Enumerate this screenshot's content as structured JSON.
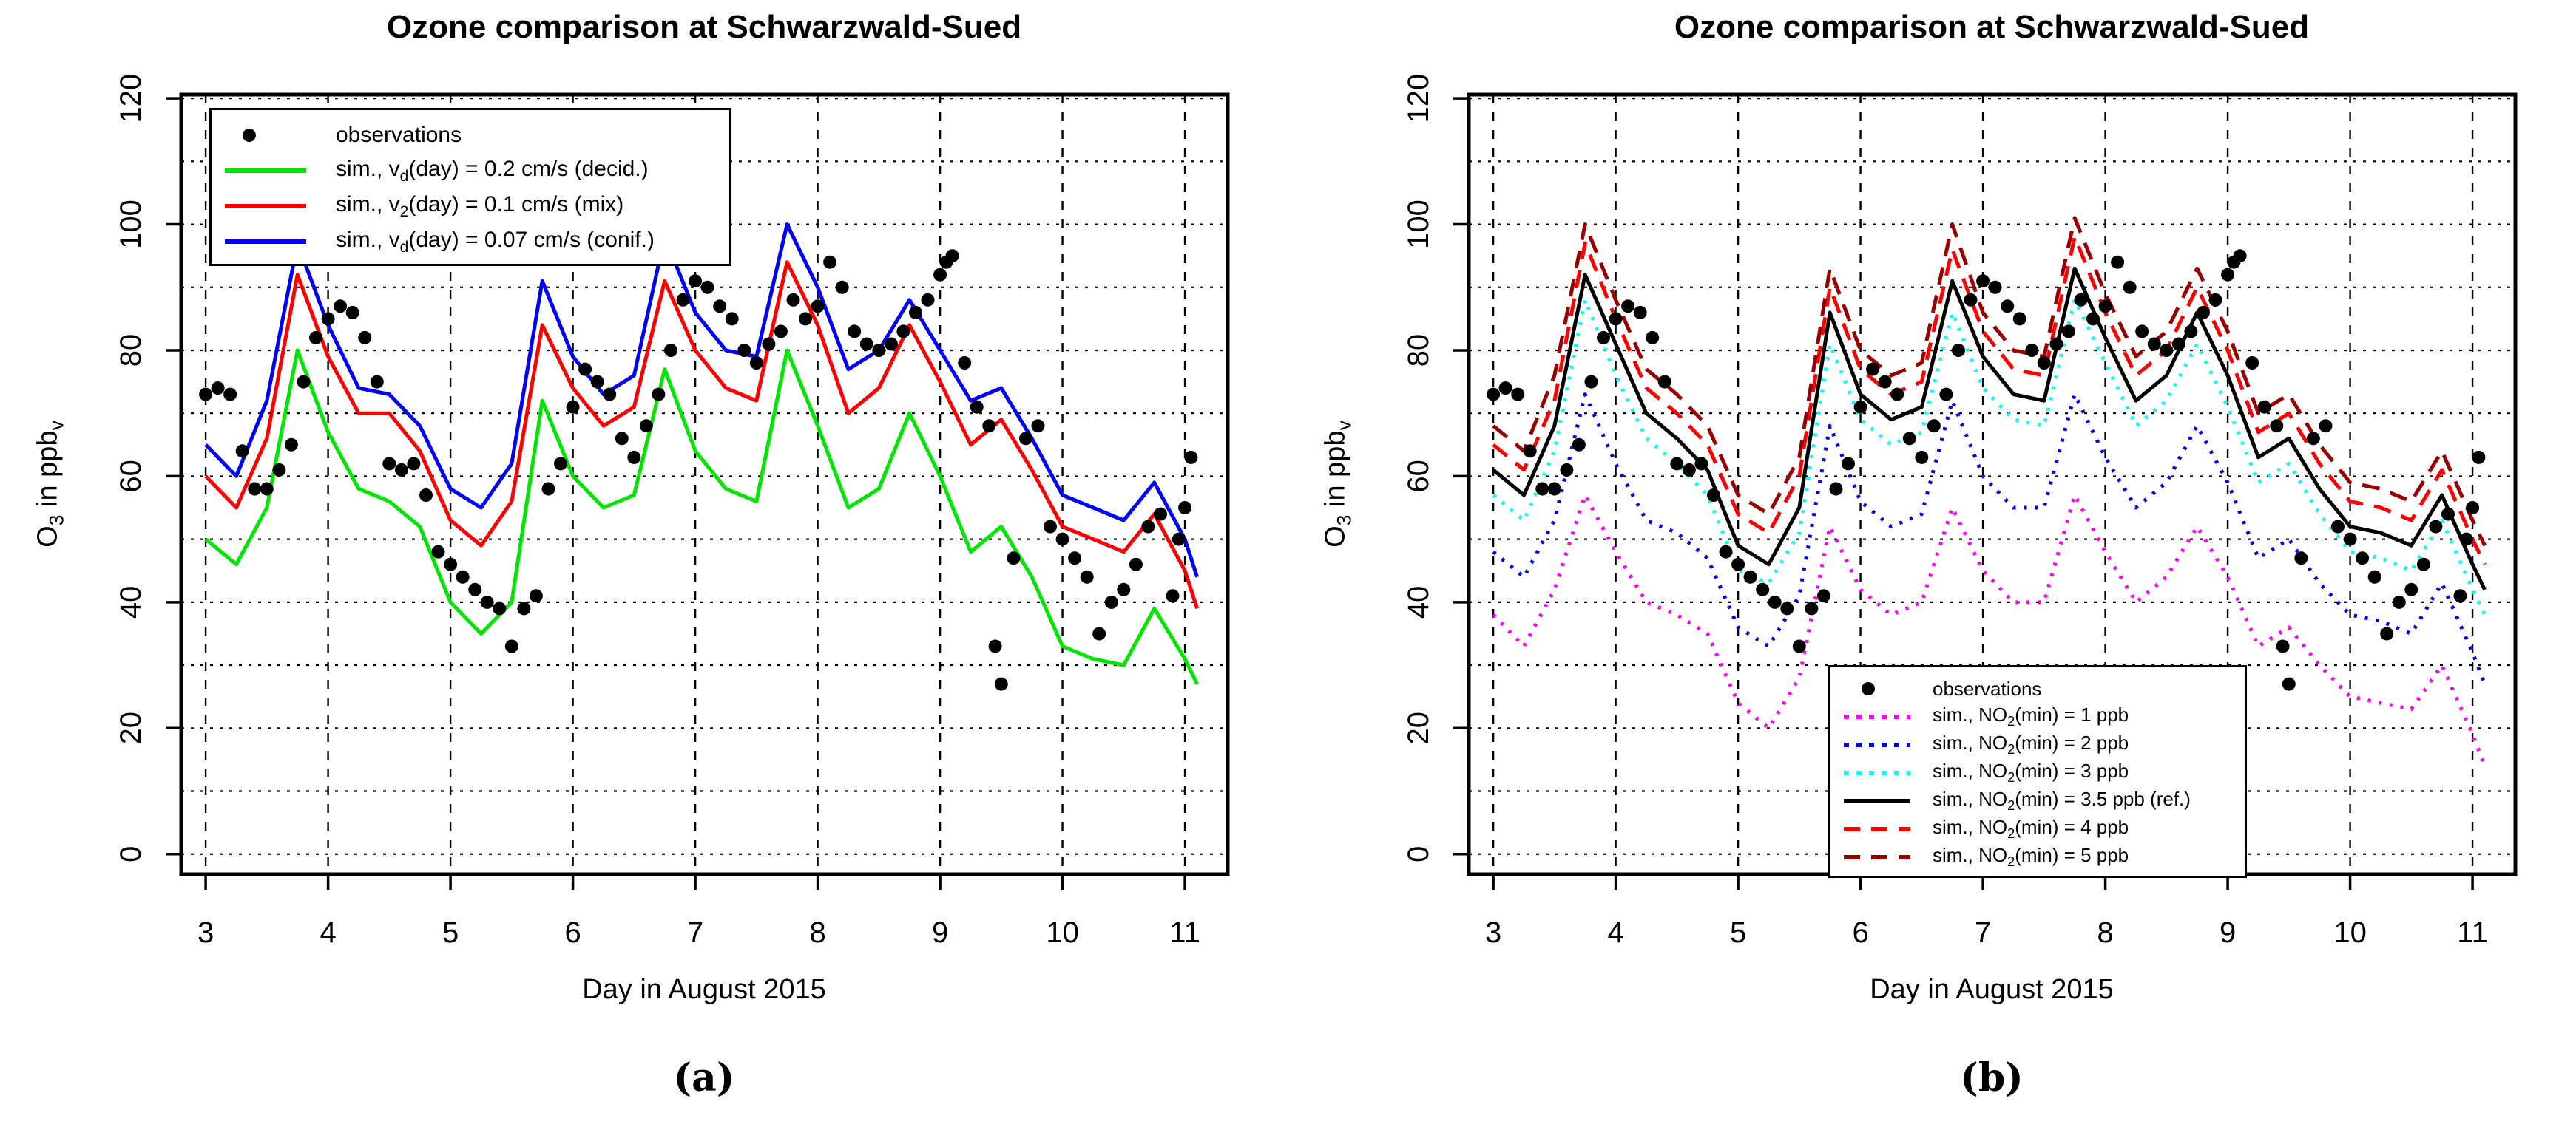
{
  "figure": {
    "captions": [
      "(a)",
      "(b)"
    ],
    "background": "#ffffff",
    "axis_color": "#000000"
  },
  "chart_data": [
    {
      "type": "line",
      "panel": "a",
      "title": "Ozone comparison at Schwarzwald-Sued",
      "xlabel": "Day in August 2015",
      "ylabel_parts": [
        {
          "t": "O"
        },
        {
          "sub": "3"
        },
        {
          "t": " in ppb"
        },
        {
          "sub": "v"
        }
      ],
      "xlim": [
        2.8,
        11.35
      ],
      "ylim": [
        -3.2,
        120.6
      ],
      "x_ticks": [
        3,
        4,
        5,
        6,
        7,
        8,
        9,
        10,
        11
      ],
      "y_ticks": [
        0,
        20,
        40,
        60,
        80,
        100,
        120
      ],
      "grid": {
        "x_step": 1,
        "y_step": 10,
        "on": true
      },
      "legend_position": "top-left",
      "x_sim": [
        3,
        3.25,
        3.5,
        3.75,
        4,
        4.25,
        4.5,
        4.75,
        5,
        5.25,
        5.5,
        5.75,
        6,
        6.25,
        6.5,
        6.75,
        7,
        7.25,
        7.5,
        7.75,
        8,
        8.25,
        8.5,
        8.75,
        9,
        9.25,
        9.5,
        9.75,
        10,
        10.25,
        10.5,
        10.75,
        11,
        11.1
      ],
      "series": [
        {
          "name": "sim., vd(day) = 0.2 cm/s (decid.)",
          "color": "#00e600",
          "style": "solid",
          "width": 5,
          "label_parts": [
            {
              "t": "sim., v"
            },
            {
              "sub": "d"
            },
            {
              "t": "(day) = 0.2 cm/s (decid.)"
            }
          ],
          "values": [
            50,
            46,
            55,
            80,
            67,
            58,
            56,
            52,
            40,
            35,
            40,
            72,
            60,
            55,
            57,
            77,
            64,
            58,
            56,
            80,
            68,
            55,
            58,
            70,
            60,
            48,
            52,
            44,
            33,
            31,
            30,
            39,
            31,
            27
          ]
        },
        {
          "name": "sim., v2(day) = 0.1 cm/s (mix)",
          "color": "#ff0000",
          "style": "solid",
          "width": 5,
          "label_parts": [
            {
              "t": "sim., v"
            },
            {
              "sub": "2"
            },
            {
              "t": "(day) = 0.1 cm/s (mix)"
            }
          ],
          "values": [
            60,
            55,
            66,
            92,
            79,
            70,
            70,
            64,
            53,
            49,
            56,
            84,
            74,
            68,
            71,
            91,
            80,
            74,
            72,
            94,
            84,
            70,
            74,
            84,
            75,
            65,
            69,
            61,
            52,
            50,
            48,
            54,
            45,
            39
          ]
        },
        {
          "name": "sim., vd(day) = 0.07 cm/s (conif.)",
          "color": "#0000ff",
          "style": "solid",
          "width": 5,
          "label_parts": [
            {
              "t": "sim., v"
            },
            {
              "sub": "d"
            },
            {
              "t": "(day) = 0.07 cm/s (conif.)"
            }
          ],
          "values": [
            65,
            60,
            72,
            97,
            84,
            74,
            73,
            68,
            58,
            55,
            62,
            91,
            79,
            73,
            76,
            98,
            86,
            80,
            79,
            100,
            90,
            77,
            80,
            88,
            80,
            72,
            74,
            66,
            57,
            55,
            53,
            59,
            50,
            44
          ]
        }
      ],
      "observations": {
        "name": "observations",
        "color": "#000000",
        "marker": "filled-circle",
        "radius": 9,
        "label_parts": [
          {
            "t": "observations"
          }
        ],
        "x": [
          3.0,
          3.1,
          3.2,
          3.3,
          3.4,
          3.5,
          3.6,
          3.7,
          3.8,
          3.9,
          4.0,
          4.1,
          4.2,
          4.3,
          4.4,
          4.5,
          4.6,
          4.7,
          4.8,
          4.9,
          5.0,
          5.1,
          5.2,
          5.3,
          5.4,
          5.5,
          5.6,
          5.7,
          5.8,
          5.9,
          6.0,
          6.1,
          6.2,
          6.3,
          6.4,
          6.5,
          6.6,
          6.7,
          6.8,
          6.9,
          7.0,
          7.1,
          7.2,
          7.3,
          7.4,
          7.5,
          7.6,
          7.7,
          7.8,
          7.9,
          8.0,
          8.1,
          8.2,
          8.3,
          8.4,
          8.5,
          8.6,
          8.7,
          8.8,
          8.9,
          9.0,
          9.05,
          9.1,
          9.2,
          9.3,
          9.4,
          9.45,
          9.5,
          9.6,
          9.7,
          9.8,
          9.9,
          10.0,
          10.1,
          10.2,
          10.3,
          10.4,
          10.5,
          10.6,
          10.7,
          10.8,
          10.9,
          10.95,
          11.0,
          11.05
        ],
        "values": [
          73,
          74,
          73,
          64,
          58,
          58,
          61,
          65,
          75,
          82,
          85,
          87,
          86,
          82,
          75,
          62,
          61,
          62,
          57,
          48,
          46,
          44,
          42,
          40,
          39,
          33,
          39,
          41,
          58,
          62,
          71,
          77,
          75,
          73,
          66,
          63,
          68,
          73,
          80,
          88,
          91,
          90,
          87,
          85,
          80,
          78,
          81,
          83,
          88,
          85,
          87,
          94,
          90,
          83,
          81,
          80,
          81,
          83,
          86,
          88,
          92,
          94,
          95,
          78,
          71,
          68,
          33,
          27,
          47,
          66,
          68,
          52,
          50,
          47,
          44,
          35,
          40,
          42,
          46,
          52,
          54,
          41,
          50,
          55,
          63
        ]
      }
    },
    {
      "type": "line",
      "panel": "b",
      "title": "Ozone comparison at Schwarzwald-Sued",
      "xlabel": "Day in August 2015",
      "ylabel_parts": [
        {
          "t": "O"
        },
        {
          "sub": "3"
        },
        {
          "t": " in ppb"
        },
        {
          "sub": "v"
        }
      ],
      "xlim": [
        2.8,
        11.35
      ],
      "ylim": [
        -3.2,
        120.6
      ],
      "x_ticks": [
        3,
        4,
        5,
        6,
        7,
        8,
        9,
        10,
        11
      ],
      "y_ticks": [
        0,
        20,
        40,
        60,
        80,
        100,
        120
      ],
      "grid": {
        "x_step": 1,
        "y_step": 10,
        "on": true
      },
      "legend_position": "bottom-right",
      "x_sim": [
        3,
        3.25,
        3.5,
        3.75,
        4,
        4.25,
        4.5,
        4.75,
        5,
        5.25,
        5.5,
        5.75,
        6,
        6.25,
        6.5,
        6.75,
        7,
        7.25,
        7.5,
        7.75,
        8,
        8.25,
        8.5,
        8.75,
        9,
        9.25,
        9.5,
        9.75,
        10,
        10.25,
        10.5,
        10.75,
        11,
        11.1
      ],
      "series": [
        {
          "name": "sim., NO2(min) = 1 ppb",
          "color": "#ff00ff",
          "style": "dotted",
          "width": 5,
          "label_parts": [
            {
              "t": "sim., NO"
            },
            {
              "sub": "2"
            },
            {
              "t": "(min) = 1 ppb"
            }
          ],
          "values": [
            38,
            33,
            42,
            57,
            48,
            40,
            38,
            35,
            24,
            20,
            28,
            52,
            42,
            38,
            40,
            55,
            45,
            40,
            40,
            57,
            48,
            40,
            44,
            52,
            44,
            33,
            36,
            30,
            25,
            24,
            23,
            30,
            19,
            14
          ]
        },
        {
          "name": "sim., NO2(min) = 2 ppb",
          "color": "#0000ee",
          "style": "dotted",
          "width": 5,
          "label_parts": [
            {
              "t": "sim., NO"
            },
            {
              "sub": "2"
            },
            {
              "t": "(min) = 2 ppb"
            }
          ],
          "values": [
            48,
            44,
            53,
            73,
            62,
            53,
            51,
            47,
            36,
            33,
            41,
            68,
            56,
            52,
            54,
            72,
            60,
            55,
            55,
            73,
            63,
            55,
            59,
            68,
            59,
            47,
            50,
            43,
            38,
            37,
            35,
            43,
            32,
            27
          ]
        },
        {
          "name": "sim., NO2(min) = 3 ppb",
          "color": "#00ffff",
          "style": "dotted",
          "width": 5,
          "label_parts": [
            {
              "t": "sim., NO"
            },
            {
              "sub": "2"
            },
            {
              "t": "(min) = 3 ppb"
            }
          ],
          "values": [
            57,
            53,
            64,
            88,
            76,
            66,
            62,
            57,
            45,
            43,
            51,
            81,
            69,
            65,
            67,
            86,
            74,
            69,
            68,
            88,
            78,
            68,
            72,
            81,
            71,
            59,
            62,
            54,
            48,
            47,
            45,
            53,
            42,
            38
          ]
        },
        {
          "name": "sim., NO2(min) = 4 ppb",
          "color": "#ff0000",
          "style": "dashed",
          "width": 5,
          "label_parts": [
            {
              "t": "sim., NO"
            },
            {
              "sub": "2"
            },
            {
              "t": "(min) = 4 ppb"
            }
          ],
          "values": [
            65,
            61,
            72,
            97,
            85,
            74,
            70,
            65,
            54,
            51,
            60,
            90,
            77,
            73,
            75,
            96,
            83,
            77,
            76,
            98,
            86,
            76,
            80,
            90,
            80,
            67,
            70,
            62,
            56,
            55,
            53,
            61,
            50,
            46
          ]
        },
        {
          "name": "sim., NO2(min) = 5 ppb",
          "color": "#990000",
          "style": "dashed",
          "width": 5,
          "label_parts": [
            {
              "t": "sim., NO"
            },
            {
              "sub": "2"
            },
            {
              "t": "(min) = 5 ppb"
            }
          ],
          "values": [
            68,
            64,
            76,
            100,
            88,
            77,
            73,
            68,
            57,
            54,
            63,
            93,
            80,
            76,
            78,
            100,
            86,
            80,
            79,
            101,
            89,
            79,
            83,
            93,
            83,
            70,
            73,
            65,
            59,
            58,
            56,
            64,
            53,
            49
          ]
        },
        {
          "name": "sim., NO2(min) = 3.5 ppb (ref.)",
          "color": "#000000",
          "style": "solid",
          "width": 5,
          "label_parts": [
            {
              "t": "sim., NO"
            },
            {
              "sub": "2"
            },
            {
              "t": "(min) = 3.5 ppb (ref.)"
            }
          ],
          "values": [
            61,
            57,
            68,
            92,
            81,
            70,
            66,
            61,
            49,
            46,
            55,
            86,
            73,
            69,
            71,
            91,
            79,
            73,
            72,
            93,
            82,
            72,
            76,
            86,
            76,
            63,
            66,
            58,
            52,
            51,
            49,
            57,
            46,
            42
          ]
        }
      ],
      "legend_order": [
        "observations",
        "sim., NO2(min) = 1 ppb",
        "sim., NO2(min) = 2 ppb",
        "sim., NO2(min) = 3 ppb",
        "sim., NO2(min) = 3.5 ppb (ref.)",
        "sim., NO2(min) = 4 ppb",
        "sim., NO2(min) = 5 ppb"
      ],
      "observations": {
        "name": "observations",
        "color": "#000000",
        "marker": "filled-circle",
        "radius": 9,
        "label_parts": [
          {
            "t": "observations"
          }
        ],
        "x": [
          3.0,
          3.1,
          3.2,
          3.3,
          3.4,
          3.5,
          3.6,
          3.7,
          3.8,
          3.9,
          4.0,
          4.1,
          4.2,
          4.3,
          4.4,
          4.5,
          4.6,
          4.7,
          4.8,
          4.9,
          5.0,
          5.1,
          5.2,
          5.3,
          5.4,
          5.5,
          5.6,
          5.7,
          5.8,
          5.9,
          6.0,
          6.1,
          6.2,
          6.3,
          6.4,
          6.5,
          6.6,
          6.7,
          6.8,
          6.9,
          7.0,
          7.1,
          7.2,
          7.3,
          7.4,
          7.5,
          7.6,
          7.7,
          7.8,
          7.9,
          8.0,
          8.1,
          8.2,
          8.3,
          8.4,
          8.5,
          8.6,
          8.7,
          8.8,
          8.9,
          9.0,
          9.05,
          9.1,
          9.2,
          9.3,
          9.4,
          9.45,
          9.5,
          9.6,
          9.7,
          9.8,
          9.9,
          10.0,
          10.1,
          10.2,
          10.3,
          10.4,
          10.5,
          10.6,
          10.7,
          10.8,
          10.9,
          10.95,
          11.0,
          11.05
        ],
        "values": [
          73,
          74,
          73,
          64,
          58,
          58,
          61,
          65,
          75,
          82,
          85,
          87,
          86,
          82,
          75,
          62,
          61,
          62,
          57,
          48,
          46,
          44,
          42,
          40,
          39,
          33,
          39,
          41,
          58,
          62,
          71,
          77,
          75,
          73,
          66,
          63,
          68,
          73,
          80,
          88,
          91,
          90,
          87,
          85,
          80,
          78,
          81,
          83,
          88,
          85,
          87,
          94,
          90,
          83,
          81,
          80,
          81,
          83,
          86,
          88,
          92,
          94,
          95,
          78,
          71,
          68,
          33,
          27,
          47,
          66,
          68,
          52,
          50,
          47,
          44,
          35,
          40,
          42,
          46,
          52,
          54,
          41,
          50,
          55,
          63
        ]
      }
    }
  ]
}
